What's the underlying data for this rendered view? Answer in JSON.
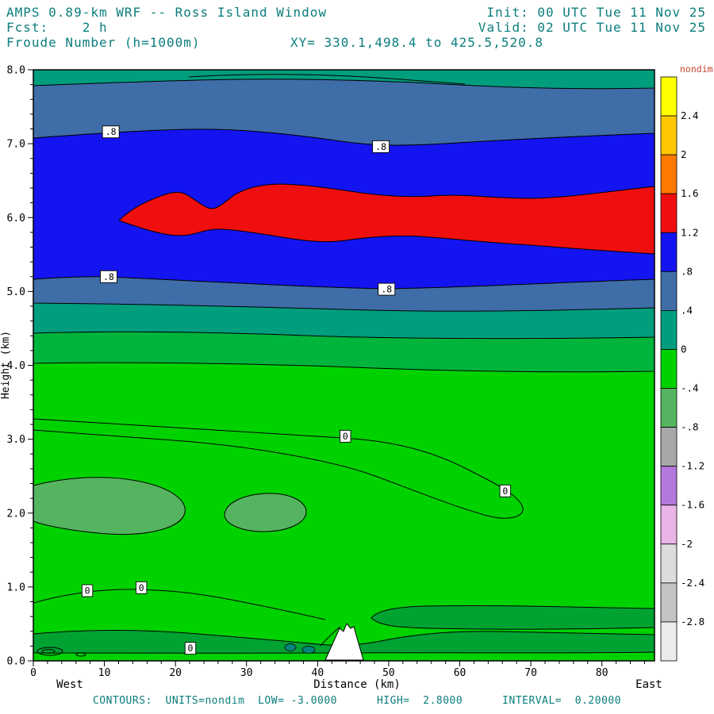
{
  "header": {
    "title": "AMPS 0.89-km WRF -- Ross Island Window",
    "init": "Init: 00 UTC Tue 11 Nov 25",
    "fcst": "Fcst:    2 h",
    "valid": "Valid: 02 UTC Tue 11 Nov 25",
    "field": "Froude Number (h=1000m)",
    "xy": "XY= 330.1,498.4 to 425.5,520.8"
  },
  "footer": "CONTOURS:  UNITS=nondim  LOW= -3.0000      HIGH=  2.8000      INTERVAL=  0.20000",
  "colors": {
    "header_text": "#0b7d7d",
    "units_label": "#c9442e",
    "axis_text": "#000000"
  },
  "axes": {
    "x_ticks": [
      0,
      10,
      20,
      30,
      40,
      50,
      60,
      70,
      80
    ],
    "x_range": [
      0,
      87.4
    ],
    "x_label": "Distance (km)",
    "x_left_label": "West",
    "x_right_label": "East",
    "y_ticks": [
      "0.0",
      "1.0",
      "2.0",
      "3.0",
      "4.0",
      "5.0",
      "6.0",
      "7.0",
      "8.0"
    ],
    "y_range": [
      0,
      8
    ],
    "y_label": "Height (km)"
  },
  "colorbar": {
    "title": "nondim",
    "labels": [
      "2.4",
      "2",
      "1.6",
      "1.2",
      ".8",
      ".4",
      "0",
      "-.4",
      "-.8",
      "-1.2",
      "-1.6",
      "-2",
      "-2.4",
      "-2.8"
    ],
    "colors": [
      "#ffff00",
      "#ffc800",
      "#ff7800",
      "#f00f0f",
      "#1414f0",
      "#3f6da8",
      "#009e7d",
      "#00d200",
      "#55b45f",
      "#a8a8a8",
      "#b478dc",
      "#eab4e6",
      "#dcdcdc",
      "#c3c3c3",
      "#ebebeb"
    ]
  },
  "plot_colors": {
    "teal": "#009e7d",
    "steel": "#3f6da8",
    "blue": "#1414f0",
    "red": "#f00f0f",
    "green_bright": "#00d200",
    "green_mid": "#00b43c",
    "green_gray": "#55b45f",
    "green_dark": "#00a332",
    "teal_dark": "#00857a",
    "white": "#ffffff"
  },
  "contour_labels": [
    {
      "text": ".8",
      "x_km": 10.9,
      "y_km": 7.16
    },
    {
      "text": ".8",
      "x_km": 48.9,
      "y_km": 6.96
    },
    {
      "text": ".8",
      "x_km": 10.6,
      "y_km": 5.2
    },
    {
      "text": ".8",
      "x_km": 49.7,
      "y_km": 5.03
    },
    {
      "text": "0",
      "x_km": 43.9,
      "y_km": 3.04
    },
    {
      "text": "0",
      "x_km": 66.4,
      "y_km": 2.3
    },
    {
      "text": "0",
      "x_km": 7.6,
      "y_km": 0.95
    },
    {
      "text": "0",
      "x_km": 15.2,
      "y_km": 0.99
    },
    {
      "text": "0",
      "x_km": 22.1,
      "y_km": 0.17
    }
  ],
  "chart_data": {
    "type": "heatmap",
    "subtype": "filled-contour-vertical-cross-section",
    "title": "Froude Number (h=1000m)",
    "model": "AMPS 0.89-km WRF -- Ross Island Window",
    "init_time": "00 UTC Tue 11 Nov 25",
    "valid_time": "02 UTC Tue 11 Nov 25",
    "forecast_hour": 2,
    "section_endpoints": "XY= 330.1,498.4 to 425.5,520.8",
    "xlabel": "Distance (km)",
    "ylabel": "Height (km)",
    "xlim": [
      0,
      87.4
    ],
    "ylim": [
      0,
      8
    ],
    "orientation": {
      "left": "West",
      "right": "East"
    },
    "contours": {
      "low": -3.0,
      "high": 2.8,
      "interval": 0.2,
      "units": "nondim"
    },
    "colorbar_levels": [
      2.4,
      2.0,
      1.6,
      1.2,
      0.8,
      0.4,
      0.0,
      -0.4,
      -0.8,
      -1.2,
      -1.6,
      -2.0,
      -2.4,
      -2.8
    ],
    "labeled_contours": [
      {
        "value": 0.8,
        "points_km": [
          [
            10.9,
            7.16
          ],
          [
            48.9,
            6.96
          ],
          [
            10.6,
            5.2
          ],
          [
            49.7,
            5.03
          ]
        ]
      },
      {
        "value": 0.0,
        "points_km": [
          [
            43.9,
            3.04
          ],
          [
            66.4,
            2.3
          ],
          [
            7.6,
            0.95
          ],
          [
            15.2,
            0.99
          ],
          [
            22.1,
            0.17
          ]
        ]
      }
    ],
    "features": [
      {
        "region": "upper-teal-band",
        "froude_range": [
          0.0,
          0.4
        ],
        "height_km": [
          7.6,
          8.0
        ],
        "distance_km": [
          0,
          87.4
        ]
      },
      {
        "region": "upper-steel-blue-band",
        "froude_range": [
          0.4,
          0.8
        ],
        "height_km": [
          7.1,
          7.6
        ],
        "distance_km": [
          0,
          87.4
        ]
      },
      {
        "region": "blue-layer",
        "froude_range": [
          0.8,
          1.2
        ],
        "height_km": [
          5.1,
          7.1
        ],
        "distance_km": [
          0,
          87.4
        ]
      },
      {
        "region": "red-supercritical-core",
        "froude_range": [
          1.2,
          1.6
        ],
        "height_km": [
          5.5,
          6.5
        ],
        "distance_km": [
          12,
          87.4
        ]
      },
      {
        "region": "lower-steel-blue-band",
        "froude_range": [
          0.4,
          0.8
        ],
        "height_km": [
          4.85,
          5.1
        ],
        "distance_km": [
          0,
          87.4
        ]
      },
      {
        "region": "lower-teal-band",
        "froude_range": [
          0.0,
          0.4
        ],
        "height_km": [
          4.4,
          4.85
        ],
        "distance_km": [
          0,
          87.4
        ]
      },
      {
        "region": "green-lower-troposphere",
        "froude_range": [
          -0.4,
          0.2
        ],
        "height_km": [
          0.2,
          4.4
        ],
        "distance_km": [
          0,
          87.4
        ]
      },
      {
        "region": "gray-green-pockets",
        "froude_range": [
          -0.8,
          -0.4
        ],
        "height_km": [
          1.6,
          2.4
        ],
        "distance_km": [
          0,
          39
        ]
      },
      {
        "region": "near-surface-darker-green-band",
        "froude_range": [
          0.0,
          0.4
        ],
        "height_km": [
          0.1,
          0.6
        ],
        "distance_km": [
          0,
          87.4
        ]
      },
      {
        "region": "terrain-peak",
        "note": "white terrain silhouette, peak ~0.5 km high near 43 km distance"
      }
    ],
    "vertical_profile_estimate": [
      {
        "height_km": 8.0,
        "froude": 0.3
      },
      {
        "height_km": 7.4,
        "froude": 0.6
      },
      {
        "height_km": 6.0,
        "froude": 1.4
      },
      {
        "height_km": 5.0,
        "froude": 0.6
      },
      {
        "height_km": 4.3,
        "froude": 0.2
      },
      {
        "height_km": 3.0,
        "froude": 0.05
      },
      {
        "height_km": 2.0,
        "froude": -0.3
      },
      {
        "height_km": 0.3,
        "froude": 0.1
      }
    ]
  }
}
